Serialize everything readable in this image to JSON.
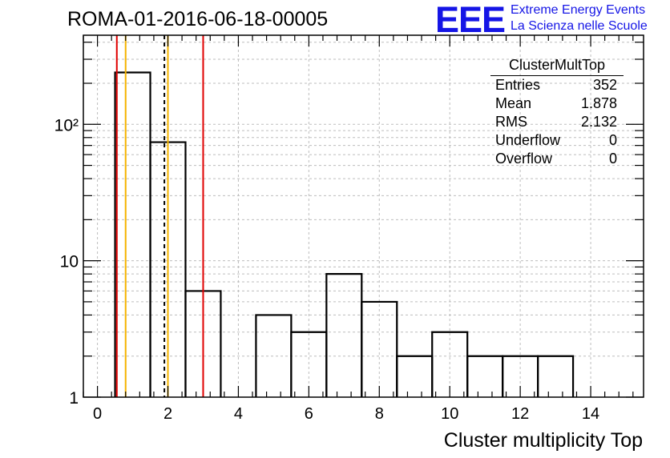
{
  "header": {
    "title": "ROMA-01-2016-06-18-00005",
    "logo_text": "EEE",
    "logo_line1": "Extreme Energy Events",
    "logo_line2": "La Scienza nelle Scuole"
  },
  "stats_box": {
    "title": "ClusterMultTop",
    "rows": [
      {
        "label": "Entries",
        "value": "352"
      },
      {
        "label": "Mean",
        "value": "1.878"
      },
      {
        "label": "RMS",
        "value": "2.132"
      },
      {
        "label": "Underflow",
        "value": "0"
      },
      {
        "label": "Overflow",
        "value": "0"
      }
    ]
  },
  "chart_data": {
    "type": "histogram",
    "title": "ROMA-01-2016-06-18-00005",
    "xlabel": "Cluster multiplicity Top",
    "ylabel": "",
    "xlim": [
      -0.4,
      15.5
    ],
    "ylim": [
      1,
      450
    ],
    "yscale": "log",
    "grid": true,
    "x_ticks": [
      0,
      2,
      4,
      6,
      8,
      10,
      12,
      14
    ],
    "y_ticks": [
      {
        "value": 1,
        "label": "1"
      },
      {
        "value": 10,
        "label": "10"
      },
      {
        "value": 100,
        "label": "10²"
      }
    ],
    "bins": [
      {
        "x0": 0.5,
        "x1": 1.5,
        "count": 240
      },
      {
        "x0": 1.5,
        "x1": 2.5,
        "count": 74
      },
      {
        "x0": 2.5,
        "x1": 3.5,
        "count": 6
      },
      {
        "x0": 3.5,
        "x1": 4.5,
        "count": 0
      },
      {
        "x0": 4.5,
        "x1": 5.5,
        "count": 4
      },
      {
        "x0": 5.5,
        "x1": 6.5,
        "count": 3
      },
      {
        "x0": 6.5,
        "x1": 7.5,
        "count": 8
      },
      {
        "x0": 7.5,
        "x1": 8.5,
        "count": 5
      },
      {
        "x0": 8.5,
        "x1": 9.5,
        "count": 2
      },
      {
        "x0": 9.5,
        "x1": 10.5,
        "count": 3
      },
      {
        "x0": 10.5,
        "x1": 11.5,
        "count": 2
      },
      {
        "x0": 11.5,
        "x1": 12.5,
        "count": 2
      },
      {
        "x0": 12.5,
        "x1": 13.5,
        "count": 2
      }
    ],
    "vertical_lines": [
      {
        "x": 0.55,
        "color": "#e00000",
        "style": "solid"
      },
      {
        "x": 3.0,
        "color": "#e00000",
        "style": "solid"
      },
      {
        "x": 0.8,
        "color": "#f5b400",
        "style": "solid"
      },
      {
        "x": 2.0,
        "color": "#f5b400",
        "style": "solid"
      },
      {
        "x": 1.9,
        "color": "#000000",
        "style": "dashed"
      }
    ]
  }
}
